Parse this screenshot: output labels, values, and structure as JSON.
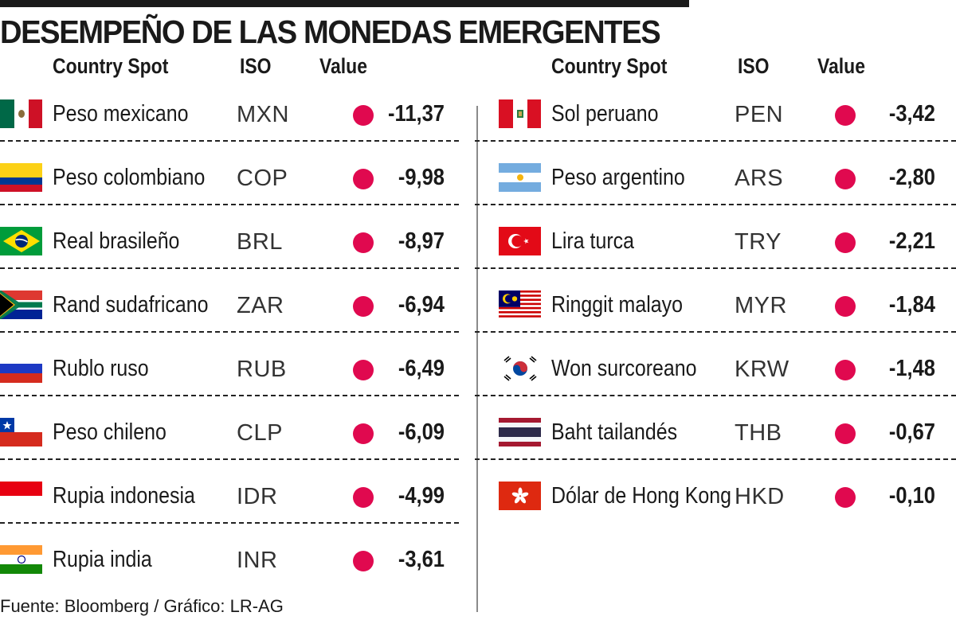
{
  "title": "DESEMPEÑO DE LAS MONEDAS EMERGENTES",
  "headers": {
    "country": "Country Spot",
    "iso": "ISO",
    "value": "Value"
  },
  "source": "Fuente: Bloomberg / Gráfico: LR-AG",
  "colors": {
    "dot": "#e0094f",
    "text": "#1a1a1a"
  },
  "chart_data": {
    "type": "table",
    "title": "DESEMPEÑO DE LAS MONEDAS EMERGENTES",
    "columns": [
      "Country Spot",
      "ISO",
      "Value"
    ],
    "rows": [
      {
        "name": "Peso mexicano",
        "iso": "MXN",
        "value": -11.37,
        "display": "-11,37",
        "flag": "mexico-flag-icon"
      },
      {
        "name": "Peso colombiano",
        "iso": "COP",
        "value": -9.98,
        "display": "-9,98",
        "flag": "colombia-flag-icon"
      },
      {
        "name": "Real brasileño",
        "iso": "BRL",
        "value": -8.97,
        "display": "-8,97",
        "flag": "brazil-flag-icon"
      },
      {
        "name": "Rand sudafricano",
        "iso": "ZAR",
        "value": -6.94,
        "display": "-6,94",
        "flag": "south-africa-flag-icon"
      },
      {
        "name": "Rublo ruso",
        "iso": "RUB",
        "value": -6.49,
        "display": "-6,49",
        "flag": "russia-flag-icon"
      },
      {
        "name": "Peso chileno",
        "iso": "CLP",
        "value": -6.09,
        "display": "-6,09",
        "flag": "chile-flag-icon"
      },
      {
        "name": "Rupia indonesia",
        "iso": "IDR",
        "value": -4.99,
        "display": "-4,99",
        "flag": "indonesia-flag-icon"
      },
      {
        "name": "Rupia india",
        "iso": "INR",
        "value": -3.61,
        "display": "-3,61",
        "flag": "india-flag-icon"
      },
      {
        "name": "Sol peruano",
        "iso": "PEN",
        "value": -3.42,
        "display": "-3,42",
        "flag": "peru-flag-icon"
      },
      {
        "name": "Peso argentino",
        "iso": "ARS",
        "value": -2.8,
        "display": "-2,80",
        "flag": "argentina-flag-icon"
      },
      {
        "name": "Lira turca",
        "iso": "TRY",
        "value": -2.21,
        "display": "-2,21",
        "flag": "turkey-flag-icon"
      },
      {
        "name": "Ringgit malayo",
        "iso": "MYR",
        "value": -1.84,
        "display": "-1,84",
        "flag": "malaysia-flag-icon"
      },
      {
        "name": "Won surcoreano",
        "iso": "KRW",
        "value": -1.48,
        "display": "-1,48",
        "flag": "south-korea-flag-icon"
      },
      {
        "name": "Baht tailandés",
        "iso": "THB",
        "value": -0.67,
        "display": "-0,67",
        "flag": "thailand-flag-icon"
      },
      {
        "name": "Dólar de Hong Kong",
        "iso": "HKD",
        "value": -0.1,
        "display": "-0,10",
        "flag": "hong-kong-flag-icon"
      }
    ]
  }
}
